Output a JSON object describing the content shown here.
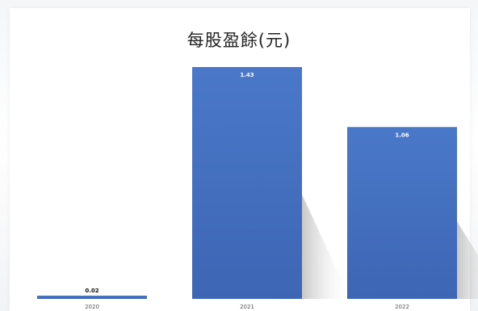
{
  "chart_data": {
    "type": "bar",
    "title": "每股盈餘(元)",
    "categories": [
      "2020",
      "2021",
      "2022"
    ],
    "values": [
      0.02,
      1.43,
      1.06
    ],
    "data_labels": [
      "0.02",
      "1.43",
      "1.06"
    ],
    "xlabel": "",
    "ylabel": "",
    "ylim": [
      0,
      1.43
    ],
    "grid": false,
    "legend": "none",
    "bar_color": "#4472c4"
  }
}
